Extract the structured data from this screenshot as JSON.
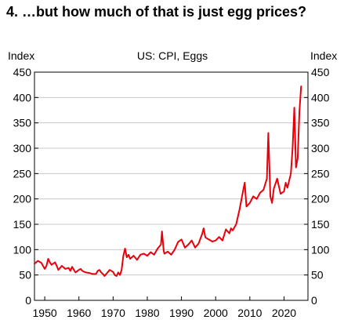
{
  "chart_data": {
    "type": "line",
    "title": "4. …but how much of that is just egg prices?",
    "subtitle": "US: CPI, Eggs",
    "ylabel_left": "Index",
    "ylabel_right": "Index",
    "xlabel": "",
    "xlim": [
      1947,
      2027
    ],
    "ylim": [
      0,
      450
    ],
    "xticks": [
      1950,
      1960,
      1970,
      1980,
      1990,
      2000,
      2010,
      2020
    ],
    "yticks": [
      0,
      50,
      100,
      150,
      200,
      250,
      300,
      350,
      400,
      450
    ],
    "grid": true,
    "legend": "none",
    "series": [
      {
        "color": "#e8000b",
        "x": [
          1947,
          1948,
          1949,
          1950,
          1950.5,
          1951,
          1951.5,
          1952,
          1953,
          1953.5,
          1954,
          1955,
          1956,
          1957,
          1957.5,
          1958,
          1959,
          1960,
          1960.5,
          1961,
          1962,
          1963,
          1964,
          1965,
          1965.5,
          1966,
          1966.5,
          1967,
          1967.5,
          1968,
          1969,
          1970,
          1970.5,
          1971,
          1971.5,
          1972,
          1972.5,
          1973,
          1973.5,
          1974,
          1974.5,
          1975,
          1976,
          1977,
          1978,
          1979,
          1980,
          1981,
          1982,
          1983,
          1984,
          1984.3,
          1984.8,
          1985,
          1986,
          1987,
          1988,
          1989,
          1990,
          1991,
          1992,
          1993,
          1994,
          1995,
          1996,
          1996.5,
          1997,
          1998,
          1999,
          2000,
          2001,
          2002,
          2003,
          2004,
          2004.5,
          2005,
          2006,
          2007,
          2008,
          2008.5,
          2009,
          2010,
          2011,
          2012,
          2013,
          2014,
          2015,
          2015.4,
          2015.8,
          2016,
          2016.5,
          2017,
          2018,
          2019,
          2020,
          2020.5,
          2021,
          2022,
          2022.5,
          2023,
          2023.5,
          2024,
          2024.5,
          2025
        ],
        "values": [
          72,
          78,
          74,
          62,
          68,
          82,
          75,
          70,
          75,
          68,
          60,
          68,
          62,
          64,
          58,
          66,
          55,
          60,
          62,
          58,
          55,
          54,
          52,
          52,
          58,
          60,
          55,
          52,
          48,
          52,
          60,
          56,
          50,
          48,
          55,
          50,
          60,
          88,
          102,
          85,
          90,
          82,
          88,
          80,
          90,
          92,
          88,
          95,
          90,
          102,
          110,
          136,
          98,
          92,
          96,
          90,
          100,
          115,
          120,
          104,
          110,
          118,
          104,
          112,
          130,
          142,
          124,
          120,
          116,
          118,
          125,
          118,
          140,
          132,
          142,
          138,
          150,
          180,
          215,
          232,
          185,
          192,
          205,
          200,
          212,
          218,
          240,
          330,
          250,
          205,
          192,
          220,
          240,
          210,
          215,
          232,
          222,
          250,
          300,
          380,
          262,
          280,
          372,
          422
        ]
      }
    ]
  }
}
